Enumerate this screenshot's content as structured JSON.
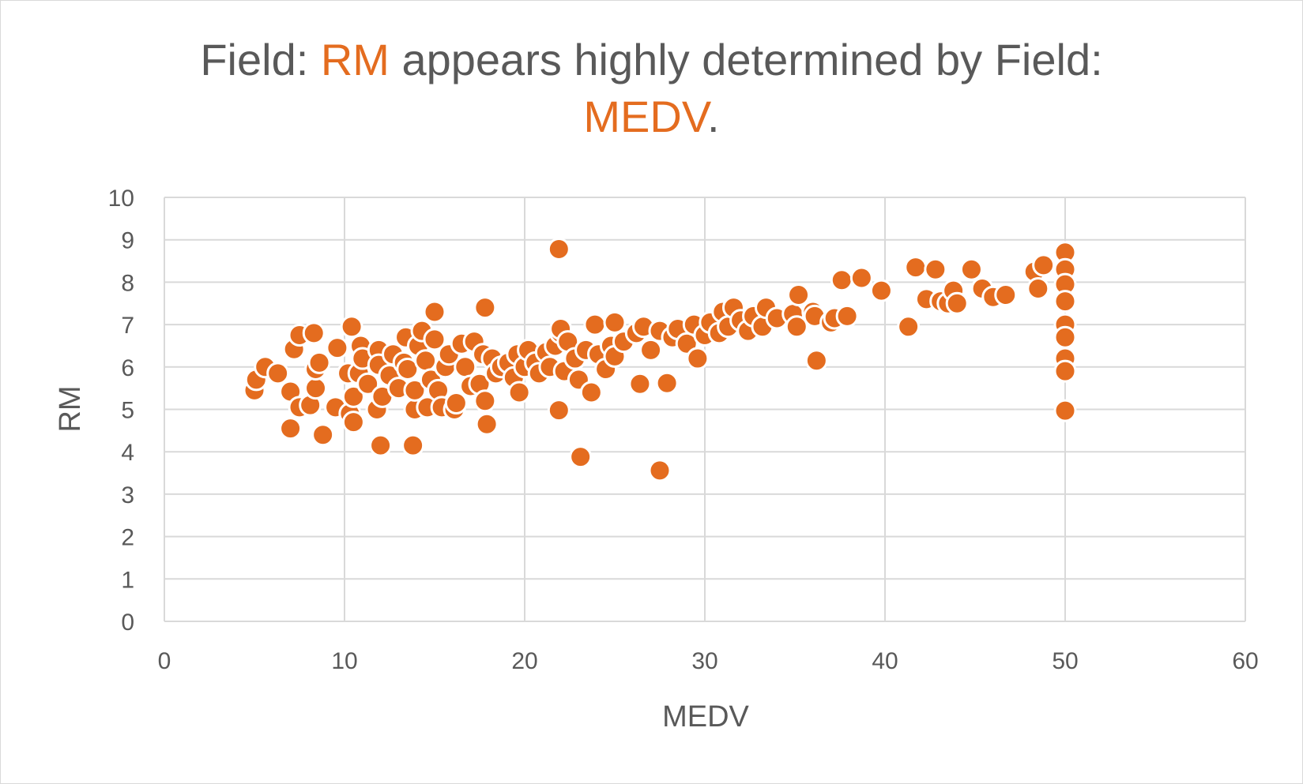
{
  "chart_data": {
    "type": "scatter",
    "title_parts": {
      "p1": "Field: ",
      "h1": "RM",
      "p2": " appears highly determined by Field:",
      "h2": "MEDV",
      "p3": "."
    },
    "xlabel": "MEDV",
    "ylabel": "RM",
    "xlim": [
      0,
      60
    ],
    "ylim": [
      0,
      10
    ],
    "x_ticks": [
      0,
      10,
      20,
      30,
      40,
      50,
      60
    ],
    "y_ticks": [
      0,
      1,
      2,
      3,
      4,
      5,
      6,
      7,
      8,
      9,
      10
    ],
    "grid": true,
    "legend": "none",
    "marker_color": "#E46C1F",
    "series": [
      {
        "values_xy": [
          [
            5,
            5.45
          ],
          [
            5.1,
            5.7
          ],
          [
            5.6,
            6.0
          ],
          [
            6.3,
            5.85
          ],
          [
            7.0,
            4.55
          ],
          [
            7.0,
            5.42
          ],
          [
            7.2,
            6.42
          ],
          [
            7.5,
            6.75
          ],
          [
            7.5,
            5.05
          ],
          [
            8.1,
            5.1
          ],
          [
            8.3,
            6.8
          ],
          [
            8.4,
            5.5
          ],
          [
            8.4,
            5.95
          ],
          [
            8.6,
            6.1
          ],
          [
            8.8,
            4.4
          ],
          [
            9.5,
            5.05
          ],
          [
            9.6,
            6.45
          ],
          [
            10.2,
            5.85
          ],
          [
            10.3,
            4.9
          ],
          [
            10.4,
            6.95
          ],
          [
            10.5,
            5.3
          ],
          [
            10.5,
            4.7
          ],
          [
            10.8,
            5.85
          ],
          [
            10.9,
            6.5
          ],
          [
            11.0,
            6.2
          ],
          [
            11.3,
            5.6
          ],
          [
            11.8,
            5.0
          ],
          [
            11.9,
            6.4
          ],
          [
            11.9,
            6.05
          ],
          [
            12.0,
            4.15
          ],
          [
            12.1,
            5.3
          ],
          [
            12.5,
            5.8
          ],
          [
            12.7,
            6.3
          ],
          [
            13.0,
            5.5
          ],
          [
            13.3,
            6.1
          ],
          [
            13.4,
            6.7
          ],
          [
            13.5,
            5.95
          ],
          [
            13.8,
            4.15
          ],
          [
            13.9,
            5.0
          ],
          [
            13.9,
            5.45
          ],
          [
            14.1,
            6.5
          ],
          [
            14.3,
            6.85
          ],
          [
            14.5,
            6.15
          ],
          [
            14.6,
            5.05
          ],
          [
            14.8,
            5.7
          ],
          [
            15.0,
            7.3
          ],
          [
            15.0,
            6.65
          ],
          [
            15.2,
            5.45
          ],
          [
            15.4,
            5.05
          ],
          [
            15.6,
            6.0
          ],
          [
            15.8,
            6.3
          ],
          [
            16.1,
            5.0
          ],
          [
            16.2,
            5.15
          ],
          [
            16.5,
            6.55
          ],
          [
            16.7,
            6.0
          ],
          [
            17.0,
            5.55
          ],
          [
            17.2,
            6.6
          ],
          [
            17.5,
            5.6
          ],
          [
            17.7,
            6.3
          ],
          [
            17.8,
            7.4
          ],
          [
            17.8,
            5.2
          ],
          [
            17.9,
            4.65
          ],
          [
            18.2,
            6.2
          ],
          [
            18.4,
            5.85
          ],
          [
            18.7,
            6.0
          ],
          [
            19.1,
            6.1
          ],
          [
            19.4,
            5.75
          ],
          [
            19.6,
            6.3
          ],
          [
            19.7,
            5.4
          ],
          [
            20.0,
            6.0
          ],
          [
            20.2,
            6.4
          ],
          [
            20.6,
            6.1
          ],
          [
            20.8,
            5.85
          ],
          [
            21.2,
            6.35
          ],
          [
            21.4,
            6.0
          ],
          [
            21.7,
            6.5
          ],
          [
            21.9,
            8.78
          ],
          [
            21.9,
            4.98
          ],
          [
            22.0,
            6.8
          ],
          [
            22.0,
            6.9
          ],
          [
            22.2,
            5.9
          ],
          [
            22.4,
            6.6
          ],
          [
            22.8,
            6.2
          ],
          [
            23.1,
            3.88
          ],
          [
            23.0,
            5.7
          ],
          [
            23.4,
            6.4
          ],
          [
            23.7,
            5.4
          ],
          [
            23.9,
            7.0
          ],
          [
            24.1,
            6.3
          ],
          [
            24.5,
            5.95
          ],
          [
            24.8,
            6.5
          ],
          [
            25.0,
            7.05
          ],
          [
            25.0,
            6.25
          ],
          [
            25.5,
            6.6
          ],
          [
            26.2,
            6.8
          ],
          [
            26.4,
            5.6
          ],
          [
            26.6,
            6.95
          ],
          [
            27.0,
            6.4
          ],
          [
            27.5,
            3.56
          ],
          [
            27.5,
            6.85
          ],
          [
            27.9,
            5.62
          ],
          [
            28.2,
            6.7
          ],
          [
            28.5,
            6.9
          ],
          [
            29.0,
            6.55
          ],
          [
            29.4,
            7.0
          ],
          [
            29.6,
            6.2
          ],
          [
            30.0,
            6.75
          ],
          [
            30.3,
            7.05
          ],
          [
            30.8,
            6.8
          ],
          [
            31.0,
            7.3
          ],
          [
            31.3,
            6.95
          ],
          [
            31.6,
            7.4
          ],
          [
            32.0,
            7.1
          ],
          [
            32.4,
            6.85
          ],
          [
            32.7,
            7.2
          ],
          [
            33.2,
            6.95
          ],
          [
            33.4,
            7.4
          ],
          [
            34.0,
            7.15
          ],
          [
            34.9,
            7.25
          ],
          [
            35.1,
            6.95
          ],
          [
            35.2,
            7.7
          ],
          [
            36.0,
            7.3
          ],
          [
            36.1,
            7.2
          ],
          [
            36.2,
            6.15
          ],
          [
            37.0,
            7.05
          ],
          [
            37.2,
            7.15
          ],
          [
            37.6,
            8.05
          ],
          [
            37.9,
            7.2
          ],
          [
            38.7,
            8.1
          ],
          [
            39.8,
            7.8
          ],
          [
            41.3,
            6.95
          ],
          [
            41.7,
            8.35
          ],
          [
            42.3,
            7.6
          ],
          [
            42.8,
            8.3
          ],
          [
            43.1,
            7.55
          ],
          [
            43.5,
            7.5
          ],
          [
            43.8,
            7.8
          ],
          [
            44.0,
            7.5
          ],
          [
            44.8,
            8.3
          ],
          [
            45.4,
            7.85
          ],
          [
            46.0,
            7.65
          ],
          [
            46.7,
            7.7
          ],
          [
            48.3,
            8.25
          ],
          [
            48.5,
            7.85
          ],
          [
            48.8,
            8.4
          ],
          [
            50.0,
            8.7
          ],
          [
            50.0,
            8.3
          ],
          [
            50.0,
            7.95
          ],
          [
            50.0,
            7.55
          ],
          [
            50.0,
            7.0
          ],
          [
            50.0,
            6.7
          ],
          [
            50.0,
            6.2
          ],
          [
            50.0,
            5.9
          ],
          [
            50.0,
            4.97
          ]
        ]
      }
    ]
  }
}
